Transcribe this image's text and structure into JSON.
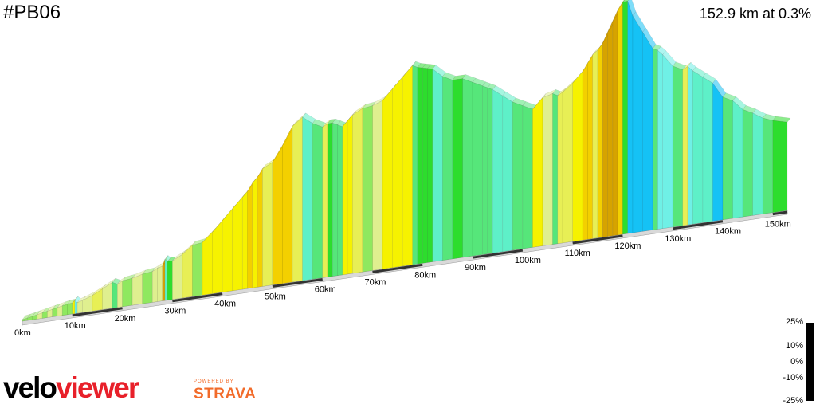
{
  "header": {
    "title": "#PB06",
    "summary": "152.9 km at 0.3%"
  },
  "legend": {
    "labels": [
      "25%",
      "10%",
      "0%",
      "-10%",
      "-25%"
    ]
  },
  "branding": {
    "velo": "velo",
    "viewer": "viewer",
    "powered": "POWERED BY",
    "strava": "STRAVA"
  },
  "chart_data": {
    "type": "area",
    "title": "#PB06",
    "x_unit": "km",
    "x_ticks": [
      "0km",
      "10km",
      "20km",
      "30km",
      "40km",
      "50km",
      "60km",
      "70km",
      "80km",
      "90km",
      "100km",
      "110km",
      "120km",
      "130km",
      "140km",
      "150km"
    ],
    "total_distance_km": 152.9,
    "avg_gradient": "0.3%",
    "profile_top": [
      [
        0,
        0.025
      ],
      [
        1,
        0.028
      ],
      [
        2,
        0.032
      ],
      [
        3,
        0.036
      ],
      [
        4,
        0.04
      ],
      [
        5,
        0.044
      ],
      [
        6,
        0.048
      ],
      [
        7,
        0.052
      ],
      [
        8,
        0.056
      ],
      [
        9,
        0.06
      ],
      [
        10,
        0.062
      ],
      [
        10.5,
        0.07
      ],
      [
        11,
        0.06
      ],
      [
        12,
        0.066
      ],
      [
        14,
        0.08
      ],
      [
        16,
        0.1
      ],
      [
        18,
        0.12
      ],
      [
        19,
        0.11
      ],
      [
        20,
        0.12
      ],
      [
        22,
        0.125
      ],
      [
        24,
        0.135
      ],
      [
        26,
        0.14
      ],
      [
        27,
        0.15
      ],
      [
        28,
        0.155
      ],
      [
        28.5,
        0.18
      ],
      [
        29,
        0.17
      ],
      [
        30,
        0.17
      ],
      [
        32,
        0.19
      ],
      [
        34,
        0.22
      ],
      [
        36,
        0.225
      ],
      [
        38,
        0.26
      ],
      [
        40,
        0.3
      ],
      [
        42,
        0.34
      ],
      [
        44,
        0.38
      ],
      [
        45,
        0.4
      ],
      [
        46,
        0.43
      ],
      [
        47,
        0.45
      ],
      [
        48,
        0.48
      ],
      [
        50,
        0.5
      ],
      [
        52,
        0.56
      ],
      [
        54,
        0.63
      ],
      [
        56,
        0.66
      ],
      [
        58,
        0.63
      ],
      [
        60,
        0.61
      ],
      [
        61,
        0.62
      ],
      [
        62,
        0.62
      ],
      [
        63,
        0.61
      ],
      [
        64,
        0.6
      ],
      [
        65,
        0.62
      ],
      [
        66,
        0.64
      ],
      [
        68,
        0.66
      ],
      [
        70,
        0.665
      ],
      [
        72,
        0.68
      ],
      [
        74,
        0.72
      ],
      [
        76,
        0.76
      ],
      [
        78,
        0.8
      ],
      [
        79,
        0.79
      ],
      [
        80,
        0.785
      ],
      [
        81,
        0.78
      ],
      [
        82,
        0.775
      ],
      [
        84,
        0.74
      ],
      [
        86,
        0.72
      ],
      [
        88,
        0.72
      ],
      [
        90,
        0.7
      ],
      [
        92,
        0.68
      ],
      [
        93,
        0.67
      ],
      [
        94,
        0.66
      ],
      [
        96,
        0.63
      ],
      [
        98,
        0.6
      ],
      [
        100,
        0.58
      ],
      [
        102,
        0.56
      ],
      [
        104,
        0.6
      ],
      [
        106,
        0.61
      ],
      [
        107,
        0.6
      ],
      [
        108,
        0.61
      ],
      [
        110,
        0.64
      ],
      [
        112,
        0.68
      ],
      [
        113,
        0.71
      ],
      [
        114,
        0.74
      ],
      [
        115,
        0.755
      ],
      [
        116,
        0.78
      ],
      [
        117,
        0.82
      ],
      [
        118,
        0.86
      ],
      [
        119,
        0.9
      ],
      [
        120,
        0.93
      ],
      [
        121,
        0.93
      ],
      [
        122,
        0.87
      ],
      [
        124,
        0.8
      ],
      [
        126,
        0.73
      ],
      [
        127,
        0.72
      ],
      [
        128,
        0.7
      ],
      [
        130,
        0.65
      ],
      [
        132,
        0.63
      ],
      [
        133,
        0.64
      ],
      [
        134,
        0.62
      ],
      [
        136,
        0.59
      ],
      [
        138,
        0.56
      ],
      [
        140,
        0.5
      ],
      [
        142,
        0.48
      ],
      [
        144,
        0.44
      ],
      [
        146,
        0.42
      ],
      [
        148,
        0.395
      ],
      [
        150,
        0.38
      ],
      [
        152.9,
        0.365
      ]
    ],
    "legend_range": [
      "25%",
      "-25%"
    ]
  }
}
